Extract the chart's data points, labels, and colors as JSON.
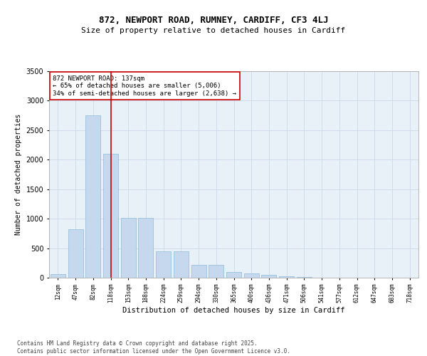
{
  "title1": "872, NEWPORT ROAD, RUMNEY, CARDIFF, CF3 4LJ",
  "title2": "Size of property relative to detached houses in Cardiff",
  "xlabel": "Distribution of detached houses by size in Cardiff",
  "ylabel": "Number of detached properties",
  "bar_color": "#c5d8ed",
  "bar_edge_color": "#7bafd4",
  "categories": [
    "12sqm",
    "47sqm",
    "82sqm",
    "118sqm",
    "153sqm",
    "188sqm",
    "224sqm",
    "259sqm",
    "294sqm",
    "330sqm",
    "365sqm",
    "400sqm",
    "436sqm",
    "471sqm",
    "506sqm",
    "541sqm",
    "577sqm",
    "612sqm",
    "647sqm",
    "683sqm",
    "718sqm"
  ],
  "values": [
    55,
    820,
    2750,
    2100,
    1010,
    1010,
    450,
    450,
    220,
    220,
    100,
    75,
    50,
    30,
    10,
    5,
    3,
    2,
    1,
    1,
    0
  ],
  "vline_index": 3,
  "vline_color": "#cc0000",
  "annotation_text": "872 NEWPORT ROAD: 137sqm\n← 65% of detached houses are smaller (5,006)\n34% of semi-detached houses are larger (2,638) →",
  "annotation_box_color": "#cc0000",
  "ylim": [
    0,
    3500
  ],
  "yticks": [
    0,
    500,
    1000,
    1500,
    2000,
    2500,
    3000,
    3500
  ],
  "grid_color": "#ccd9e8",
  "background_color": "#e8f0f8",
  "footer_text": "Contains HM Land Registry data © Crown copyright and database right 2025.\nContains public sector information licensed under the Open Government Licence v3.0.",
  "title1_fontsize": 9,
  "title2_fontsize": 8,
  "annotation_fontsize": 6.5,
  "footer_fontsize": 5.5,
  "ylabel_fontsize": 7,
  "xlabel_fontsize": 7.5,
  "ytick_fontsize": 7,
  "xtick_fontsize": 5.5
}
